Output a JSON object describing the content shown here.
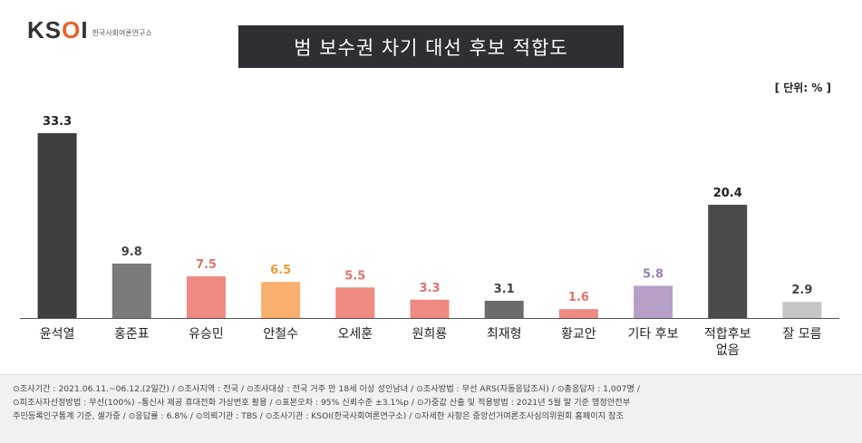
{
  "logo": {
    "mark_prefix": "KS",
    "mark_o": "O",
    "mark_suffix": "I",
    "sub": "한국사회여론연구소"
  },
  "unit_label": "[ 단위: % ]",
  "colors": {
    "dark": "#3e3e3e",
    "gray": "#7b7b7b",
    "salmon": "#ee8a82",
    "orange": "#f9b06e",
    "purple": "#b6a0c8",
    "lightgray": "#c6c6c6",
    "axis": "#555555"
  },
  "chart_data": {
    "type": "bar",
    "title": "범 보수권 차기 대선 후보 적합도",
    "categories": [
      "윤석열",
      "홍준표",
      "유승민",
      "안철수",
      "오세훈",
      "원희룡",
      "최재형",
      "황교안",
      "기타 후보",
      "적합후보\n없음",
      "잘 모름"
    ],
    "values": [
      33.3,
      9.8,
      7.5,
      6.5,
      5.5,
      3.3,
      3.1,
      1.6,
      5.8,
      20.4,
      2.9
    ],
    "bar_colors": [
      "#3e3e3e",
      "#7b7b7b",
      "#ee8a82",
      "#f9b06e",
      "#ee8a82",
      "#ee8a82",
      "#6b6b6b",
      "#ee8a82",
      "#b6a0c8",
      "#4a4a4a",
      "#c6c6c6"
    ],
    "label_colors": [
      "#222222",
      "#444444",
      "#e0736b",
      "#ef9a3c",
      "#e0736b",
      "#e0736b",
      "#444444",
      "#e0736b",
      "#9a7fb5",
      "#222222",
      "#444444"
    ],
    "xlabel": "",
    "ylabel": "",
    "ylim": [
      0,
      33.3
    ],
    "grid": false,
    "legend": "none"
  },
  "footer": {
    "line1": "⊙조사기간 : 2021.06.11.~06.12.(2일간)  / ⊙조사지역 : 전국 / ⊙조사대상 : 전국 거주 만 18세 이상 성인남녀 / ⊙조사방법 : 무선 ARS(자동응답조사) / ⊙총응답자 : 1,007명 /",
    "line2": "⊙피조사자선정방법 : 무선(100%) –통신사 제공 휴대전화 가상번호 활용 / ⊙표본오차 : 95% 신뢰수준 ±3.1%p / ⊙가중값 산출 및 적용방법 : 2021년 5월 말 기준 행정안전부",
    "line3": "주민등록인구통계 기준, 셀가중 / ⊙응답률 : 6.8% / ⊙의뢰기관 : TBS / ⊙조사기관 : KSOI(한국사회여론연구소) / ⊙자세한 사항은 중앙선거여론조사심의위원회 홈페이지 참조"
  }
}
